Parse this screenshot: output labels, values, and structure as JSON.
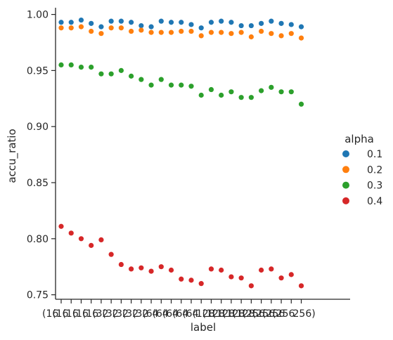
{
  "chart_data": {
    "type": "scatter",
    "title": "",
    "xlabel": "label",
    "ylabel": "accu_ratio",
    "ylim": [
      0.746,
      1.006
    ],
    "yticks": [
      "0.75",
      "0.80",
      "0.85",
      "0.90",
      "0.95",
      "1.00"
    ],
    "xtick_fragments": [
      "(16",
      "(16",
      "(16",
      "(16",
      "(16",
      "(32",
      "(32",
      "(32",
      "(32",
      "(32",
      "(64",
      "(64",
      "(64",
      "(64",
      "(64",
      "(128",
      "(128",
      "(128",
      "(128",
      "(128",
      "(256",
      "(256",
      "(256",
      "(256",
      "256)"
    ],
    "legend": {
      "title": "alpha",
      "position": "right"
    },
    "grid": false,
    "x": [
      0,
      1,
      2,
      3,
      4,
      5,
      6,
      7,
      8,
      9,
      10,
      11,
      12,
      13,
      14,
      15,
      16,
      17,
      18,
      19,
      20,
      21,
      22,
      23,
      24
    ],
    "series": [
      {
        "name": "0.1",
        "color": "#1f77b4",
        "values": [
          0.993,
          0.993,
          0.995,
          0.992,
          0.989,
          0.994,
          0.994,
          0.993,
          0.99,
          0.989,
          0.994,
          0.993,
          0.993,
          0.991,
          0.988,
          0.993,
          0.994,
          0.993,
          0.99,
          0.99,
          0.992,
          0.994,
          0.992,
          0.991,
          0.989
        ]
      },
      {
        "name": "0.2",
        "color": "#ff7f0e",
        "values": [
          0.988,
          0.988,
          0.989,
          0.985,
          0.983,
          0.988,
          0.988,
          0.985,
          0.986,
          0.984,
          0.984,
          0.984,
          0.985,
          0.985,
          0.981,
          0.984,
          0.984,
          0.983,
          0.984,
          0.98,
          0.985,
          0.983,
          0.981,
          0.983,
          0.979
        ]
      },
      {
        "name": "0.3",
        "color": "#2ca02c",
        "values": [
          0.955,
          0.955,
          0.953,
          0.953,
          0.947,
          0.947,
          0.95,
          0.945,
          0.942,
          0.937,
          0.942,
          0.937,
          0.937,
          0.936,
          0.928,
          0.933,
          0.928,
          0.931,
          0.926,
          0.926,
          0.932,
          0.935,
          0.931,
          0.931,
          0.92
        ]
      },
      {
        "name": "0.4",
        "color": "#d62728",
        "values": [
          0.811,
          0.805,
          0.8,
          0.794,
          0.799,
          0.786,
          0.777,
          0.773,
          0.774,
          0.771,
          0.775,
          0.772,
          0.764,
          0.763,
          0.76,
          0.773,
          0.772,
          0.766,
          0.765,
          0.758,
          0.772,
          0.773,
          0.765,
          0.768,
          0.758
        ]
      }
    ]
  }
}
